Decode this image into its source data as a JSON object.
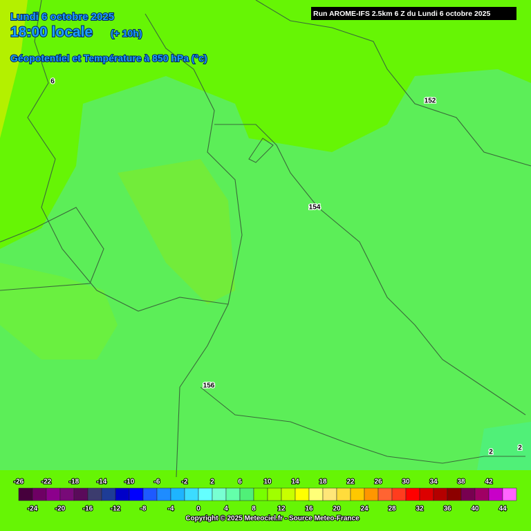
{
  "header": {
    "date": "Lundi 6 octobre 2025",
    "time": "18:00 locale",
    "lead": "(+ 10h)",
    "field": "Géopotentiel et Température à 850 hPa (°c)",
    "run": "Run AROME-IFS 2.5km 6 Z du Lundi 6 octobre 2025"
  },
  "contour_labels": [
    "6",
    "152",
    "154",
    "156",
    "2",
    "2"
  ],
  "colorbar": {
    "ticks": [
      -26,
      -24,
      -22,
      -20,
      -18,
      -16,
      -14,
      -12,
      -10,
      -8,
      -6,
      -4,
      -2,
      0,
      2,
      4,
      6,
      8,
      10,
      12,
      14,
      16,
      18,
      20,
      22,
      24,
      26,
      28,
      30,
      32,
      34,
      36,
      38,
      40,
      42,
      44
    ],
    "colors": [
      "#46003c",
      "#6e0064",
      "#8c008c",
      "#780a78",
      "#5a0a5a",
      "#3c3c6e",
      "#1e3c96",
      "#0000c8",
      "#0000ff",
      "#1e5aff",
      "#1e8cff",
      "#1eb4ff",
      "#3cdcff",
      "#64ffff",
      "#78ffd2",
      "#64ffaa",
      "#50f078",
      "#78ff00",
      "#a0ff00",
      "#c8ff00",
      "#ffff00",
      "#ffff78",
      "#ffe678",
      "#ffdc3c",
      "#ffc800",
      "#ff9600",
      "#ff6432",
      "#ff3c1e",
      "#ff0000",
      "#dc0000",
      "#b40000",
      "#8c0000",
      "#780050",
      "#a00064",
      "#c800c8",
      "#ff64ff"
    ]
  },
  "footer": {
    "copyright": "Copyright © 2025 Meteociel.fr - Source Meteo-France"
  }
}
